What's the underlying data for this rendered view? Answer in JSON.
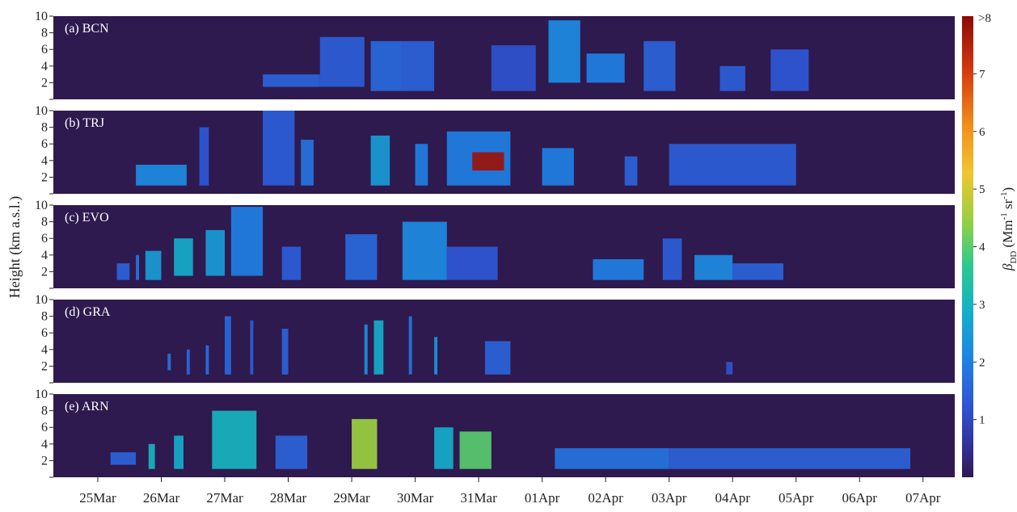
{
  "chart_data": {
    "type": "heatmap",
    "ylabel": "Height (km a.s.l.)",
    "x_tick_labels": [
      "25Mar",
      "26Mar",
      "27Mar",
      "28Mar",
      "29Mar",
      "30Mar",
      "31Mar",
      "01Apr",
      "02Apr",
      "03Apr",
      "04Apr",
      "05Apr",
      "06Apr",
      "07Apr"
    ],
    "xlim_days": [
      24.3,
      38.5
    ],
    "y_ticks": [
      2,
      4,
      6,
      8,
      10
    ],
    "ylim": [
      0,
      10
    ],
    "colorbar": {
      "label_parts": {
        "beta": "β",
        "sub": "DD",
        "open": " (Mm",
        "exp1": "-1",
        "mid": " sr",
        "exp2": "-1",
        "close": ")"
      },
      "ticks": [
        "1",
        "2",
        "3",
        "4",
        "5",
        "6",
        "7"
      ],
      "top_label": ">8",
      "range": [
        0,
        8
      ],
      "colormap": "parula-like (dark navy → blue → cyan → green → yellow → orange → dark red)"
    },
    "background_color": "#2e1a4f",
    "panels": [
      {
        "label": "(a) BCN",
        "blocks": [
          {
            "x0": 27.6,
            "x1": 28.5,
            "y0": 1.5,
            "y1": 3.0,
            "value": 1.5
          },
          {
            "x0": 28.5,
            "x1": 29.2,
            "y0": 1.5,
            "y1": 7.5,
            "value": 1.4
          },
          {
            "x0": 29.3,
            "x1": 29.8,
            "y0": 1.0,
            "y1": 7.0,
            "value": 1.6
          },
          {
            "x0": 29.8,
            "x1": 30.3,
            "y0": 1.0,
            "y1": 7.0,
            "value": 1.5
          },
          {
            "x0": 31.2,
            "x1": 31.9,
            "y0": 1.0,
            "y1": 6.5,
            "value": 1.2
          },
          {
            "x0": 32.1,
            "x1": 32.6,
            "y0": 2.0,
            "y1": 9.5,
            "value": 2.2
          },
          {
            "x0": 32.7,
            "x1": 33.3,
            "y0": 2.0,
            "y1": 5.5,
            "value": 2.0
          },
          {
            "x0": 33.6,
            "x1": 34.1,
            "y0": 1.0,
            "y1": 7.0,
            "value": 1.5
          },
          {
            "x0": 34.8,
            "x1": 35.2,
            "y0": 1.0,
            "y1": 4.0,
            "value": 1.4
          },
          {
            "x0": 35.6,
            "x1": 36.2,
            "y0": 1.0,
            "y1": 6.0,
            "value": 1.3
          }
        ]
      },
      {
        "label": "(b) TRJ",
        "blocks": [
          {
            "x0": 25.6,
            "x1": 26.4,
            "y0": 1.0,
            "y1": 3.5,
            "value": 2.2
          },
          {
            "x0": 26.6,
            "x1": 26.75,
            "y0": 1.0,
            "y1": 8.0,
            "value": 1.3
          },
          {
            "x0": 27.6,
            "x1": 28.1,
            "y0": 1.0,
            "y1": 10.0,
            "value": 1.4
          },
          {
            "x0": 28.2,
            "x1": 28.4,
            "y0": 1.0,
            "y1": 6.5,
            "value": 1.8
          },
          {
            "x0": 29.3,
            "x1": 29.6,
            "y0": 1.0,
            "y1": 7.0,
            "value": 2.5
          },
          {
            "x0": 30.0,
            "x1": 30.2,
            "y0": 1.0,
            "y1": 6.0,
            "value": 2.0
          },
          {
            "x0": 30.5,
            "x1": 31.5,
            "y0": 1.0,
            "y1": 7.5,
            "value": 2.0
          },
          {
            "x0": 30.9,
            "x1": 31.4,
            "y0": 2.8,
            "y1": 5.0,
            "value": 7.8
          },
          {
            "x0": 32.0,
            "x1": 32.5,
            "y0": 1.0,
            "y1": 5.5,
            "value": 2.0
          },
          {
            "x0": 33.3,
            "x1": 33.5,
            "y0": 1.0,
            "y1": 4.5,
            "value": 1.5
          },
          {
            "x0": 34.0,
            "x1": 36.0,
            "y0": 1.0,
            "y1": 6.0,
            "value": 1.4
          }
        ]
      },
      {
        "label": "(c) EVO",
        "blocks": [
          {
            "x0": 25.3,
            "x1": 25.5,
            "y0": 1.0,
            "y1": 3.0,
            "value": 1.5
          },
          {
            "x0": 25.6,
            "x1": 25.65,
            "y0": 1.0,
            "y1": 4.0,
            "value": 1.8
          },
          {
            "x0": 25.75,
            "x1": 26.0,
            "y0": 1.0,
            "y1": 4.5,
            "value": 2.5
          },
          {
            "x0": 26.2,
            "x1": 26.5,
            "y0": 1.5,
            "y1": 6.0,
            "value": 2.8
          },
          {
            "x0": 26.7,
            "x1": 27.0,
            "y0": 1.5,
            "y1": 7.0,
            "value": 2.5
          },
          {
            "x0": 27.1,
            "x1": 27.6,
            "y0": 1.5,
            "y1": 9.8,
            "value": 2.0
          },
          {
            "x0": 27.9,
            "x1": 28.2,
            "y0": 1.0,
            "y1": 5.0,
            "value": 1.4
          },
          {
            "x0": 28.9,
            "x1": 29.4,
            "y0": 1.0,
            "y1": 6.5,
            "value": 1.6
          },
          {
            "x0": 29.8,
            "x1": 30.5,
            "y0": 1.0,
            "y1": 8.0,
            "value": 2.2
          },
          {
            "x0": 30.5,
            "x1": 31.3,
            "y0": 1.0,
            "y1": 5.0,
            "value": 1.3
          },
          {
            "x0": 32.8,
            "x1": 33.6,
            "y0": 1.0,
            "y1": 3.5,
            "value": 2.0
          },
          {
            "x0": 33.9,
            "x1": 34.2,
            "y0": 1.0,
            "y1": 6.0,
            "value": 1.4
          },
          {
            "x0": 34.4,
            "x1": 35.0,
            "y0": 1.0,
            "y1": 4.0,
            "value": 2.2
          },
          {
            "x0": 35.0,
            "x1": 35.8,
            "y0": 1.0,
            "y1": 3.0,
            "value": 1.5
          }
        ]
      },
      {
        "label": "(d) GRA",
        "blocks": [
          {
            "x0": 26.1,
            "x1": 26.15,
            "y0": 1.5,
            "y1": 3.5,
            "value": 1.8
          },
          {
            "x0": 26.4,
            "x1": 26.45,
            "y0": 1.0,
            "y1": 4.0,
            "value": 1.6
          },
          {
            "x0": 26.7,
            "x1": 26.75,
            "y0": 1.0,
            "y1": 4.5,
            "value": 1.7
          },
          {
            "x0": 27.0,
            "x1": 27.1,
            "y0": 1.0,
            "y1": 8.0,
            "value": 1.6
          },
          {
            "x0": 27.4,
            "x1": 27.45,
            "y0": 1.0,
            "y1": 7.5,
            "value": 1.4
          },
          {
            "x0": 27.9,
            "x1": 28.0,
            "y0": 1.0,
            "y1": 6.5,
            "value": 1.5
          },
          {
            "x0": 29.2,
            "x1": 29.25,
            "y0": 1.0,
            "y1": 7.0,
            "value": 2.3
          },
          {
            "x0": 29.35,
            "x1": 29.5,
            "y0": 1.0,
            "y1": 7.5,
            "value": 2.8
          },
          {
            "x0": 29.9,
            "x1": 29.95,
            "y0": 1.0,
            "y1": 8.0,
            "value": 1.8
          },
          {
            "x0": 30.3,
            "x1": 30.35,
            "y0": 1.0,
            "y1": 5.5,
            "value": 2.4
          },
          {
            "x0": 31.1,
            "x1": 31.5,
            "y0": 1.0,
            "y1": 5.0,
            "value": 1.5
          },
          {
            "x0": 34.9,
            "x1": 35.0,
            "y0": 1.0,
            "y1": 2.5,
            "value": 1.2
          }
        ]
      },
      {
        "label": "(e) ARN",
        "blocks": [
          {
            "x0": 25.2,
            "x1": 25.6,
            "y0": 1.5,
            "y1": 3.0,
            "value": 1.5
          },
          {
            "x0": 25.8,
            "x1": 25.9,
            "y0": 1.0,
            "y1": 4.0,
            "value": 3.0
          },
          {
            "x0": 26.2,
            "x1": 26.35,
            "y0": 1.0,
            "y1": 5.0,
            "value": 2.8
          },
          {
            "x0": 26.8,
            "x1": 27.5,
            "y0": 1.0,
            "y1": 8.0,
            "value": 3.0
          },
          {
            "x0": 27.8,
            "x1": 28.3,
            "y0": 1.0,
            "y1": 5.0,
            "value": 1.5
          },
          {
            "x0": 29.0,
            "x1": 29.4,
            "y0": 1.0,
            "y1": 7.0,
            "value": 4.5
          },
          {
            "x0": 30.3,
            "x1": 30.6,
            "y0": 1.0,
            "y1": 6.0,
            "value": 2.8
          },
          {
            "x0": 30.7,
            "x1": 31.2,
            "y0": 1.0,
            "y1": 5.5,
            "value": 4.0
          },
          {
            "x0": 32.2,
            "x1": 34.0,
            "y0": 1.0,
            "y1": 3.5,
            "value": 1.8
          },
          {
            "x0": 34.0,
            "x1": 37.8,
            "y0": 1.0,
            "y1": 3.5,
            "value": 1.5
          }
        ]
      }
    ]
  }
}
